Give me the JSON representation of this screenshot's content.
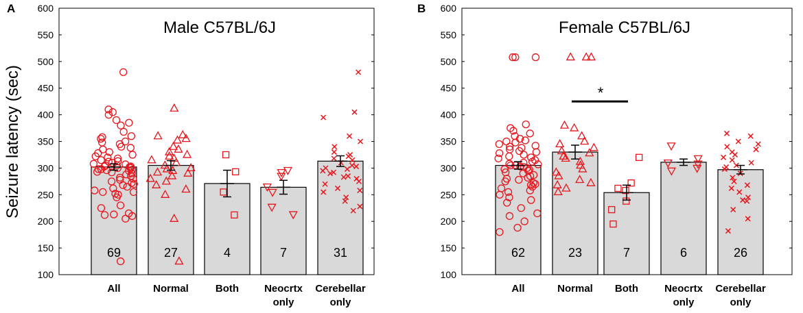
{
  "figure": {
    "ylabel": "Seizure latency (sec)",
    "marker_color": "#e8141b",
    "bar_fill": "#d9d9d9"
  },
  "chart_data": [
    {
      "type": "bar",
      "panel_label": "A",
      "title": "Male C57BL/6J",
      "ylabel": "Seizure latency (sec)",
      "ylim": [
        100,
        600
      ],
      "yticks": [
        "100",
        "150",
        "200",
        "250",
        "300",
        "350",
        "400",
        "450",
        "500",
        "550",
        "600"
      ],
      "categories": [
        [
          "All"
        ],
        [
          "Normal"
        ],
        [
          "Both"
        ],
        [
          "Neocrtx",
          "only"
        ],
        [
          "Cerebellar",
          "only"
        ]
      ],
      "values": [
        302,
        305,
        271,
        264,
        313
      ],
      "sem": [
        6,
        9,
        25,
        13,
        10
      ],
      "n": [
        "69",
        "27",
        "4",
        "7",
        "31"
      ],
      "markers": [
        "circle",
        "triangle-up",
        "square",
        "triangle-down",
        "cross"
      ],
      "points": [
        [
          125,
          205,
          210,
          212,
          213,
          215,
          225,
          230,
          245,
          250,
          252,
          255,
          255,
          258,
          262,
          265,
          268,
          270,
          272,
          275,
          278,
          280,
          282,
          285,
          288,
          290,
          292,
          293,
          295,
          296,
          297,
          298,
          298,
          300,
          300,
          302,
          303,
          303,
          305,
          305,
          307,
          308,
          310,
          312,
          313,
          315,
          318,
          320,
          322,
          325,
          328,
          330,
          335,
          338,
          340,
          345,
          348,
          350,
          355,
          358,
          360,
          368,
          380,
          385,
          390,
          400,
          405,
          410,
          480
        ],
        [
          125,
          205,
          250,
          260,
          268,
          275,
          280,
          285,
          290,
          292,
          295,
          298,
          300,
          305,
          310,
          315,
          318,
          322,
          325,
          330,
          335,
          340,
          352,
          355,
          360,
          362,
          412
        ],
        [
          212,
          255,
          293,
          325
        ],
        [
          213,
          227,
          255,
          265,
          285,
          292,
          296
        ],
        [
          220,
          228,
          238,
          245,
          255,
          258,
          262,
          270,
          275,
          280,
          283,
          285,
          290,
          292,
          295,
          298,
          300,
          303,
          305,
          310,
          315,
          318,
          322,
          325,
          330,
          340,
          350,
          360,
          395,
          405,
          480
        ]
      ],
      "significance": []
    },
    {
      "type": "bar",
      "panel_label": "B",
      "title": "Female C57BL/6J",
      "ylabel": "",
      "ylim": [
        100,
        600
      ],
      "yticks": [
        "100",
        "150",
        "200",
        "250",
        "300",
        "350",
        "400",
        "450",
        "500",
        "550",
        "600"
      ],
      "categories": [
        [
          "All"
        ],
        [
          "Normal"
        ],
        [
          "Both"
        ],
        [
          "Neocrtx",
          "only"
        ],
        [
          "Cerebellar",
          "only"
        ]
      ],
      "values": [
        305,
        330,
        254,
        311,
        297
      ],
      "sem": [
        7,
        13,
        14,
        6,
        8
      ],
      "n": [
        "62",
        "23",
        "7",
        "6",
        "26"
      ],
      "markers": [
        "circle",
        "triangle-up",
        "square",
        "triangle-down",
        "cross"
      ],
      "points": [
        [
          180,
          188,
          200,
          210,
          215,
          225,
          235,
          240,
          245,
          250,
          255,
          258,
          262,
          265,
          268,
          270,
          272,
          275,
          278,
          280,
          282,
          285,
          287,
          290,
          292,
          295,
          297,
          298,
          300,
          302,
          303,
          305,
          305,
          307,
          308,
          310,
          312,
          315,
          318,
          320,
          322,
          325,
          328,
          330,
          332,
          335,
          338,
          340,
          342,
          345,
          348,
          350,
          352,
          355,
          360,
          365,
          370,
          375,
          382,
          508,
          508,
          508
        ],
        [
          255,
          262,
          268,
          272,
          278,
          285,
          292,
          298,
          305,
          312,
          318,
          322,
          328,
          332,
          338,
          345,
          350,
          360,
          375,
          380,
          508,
          508,
          508
        ],
        [
          195,
          222,
          238,
          258,
          262,
          272,
          320
        ],
        [
          295,
          300,
          308,
          310,
          318,
          342
        ],
        [
          182,
          205,
          222,
          238,
          240,
          245,
          255,
          262,
          268,
          275,
          282,
          290,
          298,
          302,
          305,
          310,
          315,
          320,
          325,
          330,
          335,
          340,
          345,
          350,
          360,
          365
        ]
      ],
      "significance": [
        {
          "from": 1,
          "to": 2,
          "y": 425,
          "label": "*"
        }
      ]
    }
  ]
}
